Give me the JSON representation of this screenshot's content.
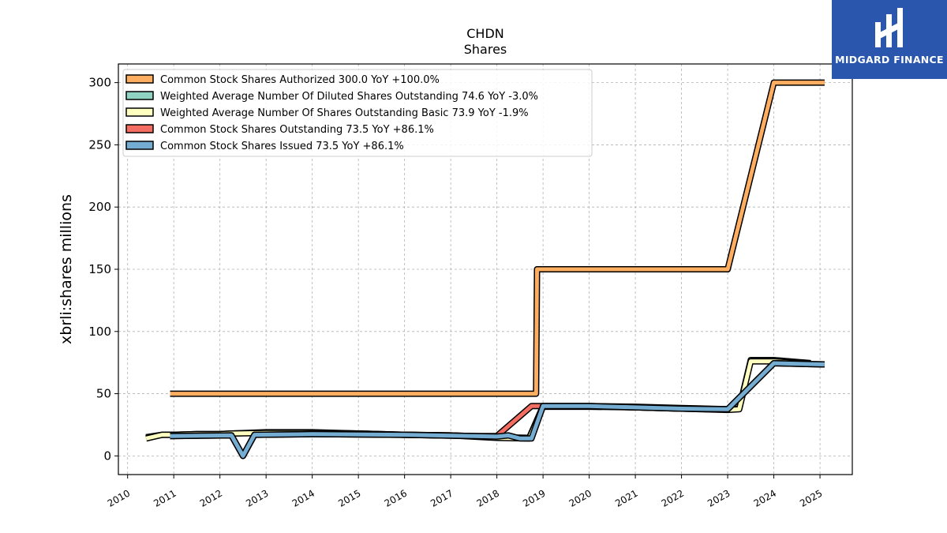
{
  "chart_data": {
    "type": "line",
    "title": "CHDN",
    "subtitle": "Shares",
    "ylabel": "xbrli:shares millions",
    "xlabel": "",
    "ylim": [
      -15,
      315
    ],
    "xlim": [
      2009.8,
      2025.7
    ],
    "yticks": [
      0,
      50,
      100,
      150,
      200,
      250,
      300
    ],
    "xticks": [
      2010,
      2011,
      2012,
      2013,
      2014,
      2015,
      2016,
      2017,
      2018,
      2019,
      2020,
      2021,
      2022,
      2023,
      2024,
      2025
    ],
    "grid": true,
    "legend_position": "top-left",
    "series": [
      {
        "name": "Common Stock Shares Authorized",
        "legend_label": "Common Stock Shares Authorized  300.0 YoY +100.0%",
        "color": "#fdae61",
        "points": [
          [
            2010.92,
            50
          ],
          [
            2018.85,
            50
          ],
          [
            2018.87,
            150
          ],
          [
            2023.0,
            150
          ],
          [
            2024.0,
            300
          ],
          [
            2025.1,
            300
          ]
        ]
      },
      {
        "name": "Weighted Average Number Of Diluted Shares Outstanding",
        "legend_label": "Weighted Average Number Of Diluted Shares Outstanding  74.6 YoY -3.0%",
        "color": "#8fd3c2",
        "points": [
          [
            2010.4,
            15
          ],
          [
            2010.75,
            17
          ],
          [
            2011.0,
            17
          ],
          [
            2011.5,
            17.5
          ],
          [
            2012.0,
            17.5
          ],
          [
            2012.25,
            18
          ],
          [
            2013.0,
            19
          ],
          [
            2014.0,
            19
          ],
          [
            2015.0,
            18
          ],
          [
            2016.0,
            17
          ],
          [
            2017.0,
            16.5
          ],
          [
            2017.75,
            15.5
          ],
          [
            2018.0,
            15
          ],
          [
            2018.7,
            14.5
          ],
          [
            2019.0,
            40
          ],
          [
            2020.0,
            40
          ],
          [
            2021.0,
            39.5
          ],
          [
            2022.0,
            38.5
          ],
          [
            2023.0,
            37.5
          ],
          [
            2023.25,
            38
          ],
          [
            2023.5,
            77
          ],
          [
            2024.0,
            77
          ],
          [
            2024.8,
            74.6
          ]
        ]
      },
      {
        "name": "Weighted Average Number Of Shares Outstanding Basic",
        "legend_label": "Weighted Average Number Of Shares Outstanding Basic  73.9 YoY -1.9%",
        "color": "#ffffbf",
        "points": [
          [
            2010.4,
            14
          ],
          [
            2010.75,
            17
          ],
          [
            2011.0,
            17
          ],
          [
            2011.5,
            17.5
          ],
          [
            2012.0,
            17.5
          ],
          [
            2012.25,
            18
          ],
          [
            2013.0,
            18.5
          ],
          [
            2014.0,
            18.5
          ],
          [
            2015.0,
            18
          ],
          [
            2016.0,
            17
          ],
          [
            2017.0,
            16.5
          ],
          [
            2017.75,
            15
          ],
          [
            2018.0,
            14.5
          ],
          [
            2018.7,
            14
          ],
          [
            2019.0,
            39.5
          ],
          [
            2020.0,
            39.5
          ],
          [
            2021.0,
            39
          ],
          [
            2022.0,
            38
          ],
          [
            2023.0,
            37
          ],
          [
            2023.25,
            37.5
          ],
          [
            2023.5,
            76
          ],
          [
            2024.0,
            76
          ],
          [
            2024.8,
            73.9
          ]
        ]
      },
      {
        "name": "Common Stock Shares Outstanding",
        "legend_label": "Common Stock Shares Outstanding  73.5 YoY +86.1%",
        "color": "#f46d63",
        "points": [
          [
            2010.92,
            16
          ],
          [
            2012.25,
            16.5
          ],
          [
            2012.5,
            0
          ],
          [
            2012.75,
            17
          ],
          [
            2014.0,
            17.5
          ],
          [
            2016.0,
            17
          ],
          [
            2017.5,
            16
          ],
          [
            2018.0,
            16
          ],
          [
            2018.75,
            40
          ],
          [
            2019.0,
            40
          ],
          [
            2020.0,
            40
          ],
          [
            2021.0,
            39
          ],
          [
            2022.0,
            38
          ],
          [
            2023.0,
            37.5
          ],
          [
            2024.0,
            74.5
          ],
          [
            2025.1,
            73.5
          ]
        ]
      },
      {
        "name": "Common Stock Shares Issued",
        "legend_label": "Common Stock Shares Issued  73.5 YoY +86.1%",
        "color": "#74add1",
        "points": [
          [
            2010.92,
            16
          ],
          [
            2012.25,
            16.5
          ],
          [
            2012.5,
            0
          ],
          [
            2012.75,
            17
          ],
          [
            2014.0,
            17.5
          ],
          [
            2016.0,
            17
          ],
          [
            2017.5,
            16
          ],
          [
            2018.0,
            15.5
          ],
          [
            2018.25,
            16.5
          ],
          [
            2018.5,
            14
          ],
          [
            2018.75,
            14
          ],
          [
            2019.0,
            40
          ],
          [
            2020.0,
            40
          ],
          [
            2021.0,
            39
          ],
          [
            2022.0,
            38
          ],
          [
            2023.0,
            37.5
          ],
          [
            2024.0,
            74.5
          ],
          [
            2025.1,
            73.5
          ]
        ]
      }
    ]
  },
  "logo": {
    "brand": "MIDGARD FINANCE"
  }
}
